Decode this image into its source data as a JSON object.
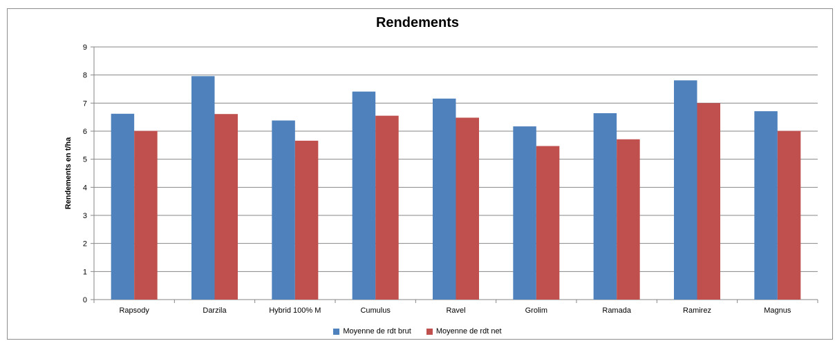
{
  "chart_data": {
    "type": "bar",
    "title": "Rendements",
    "xlabel": "",
    "ylabel": "Rendements en t/ha",
    "ylim": [
      0,
      9
    ],
    "yticks": [
      0,
      1,
      2,
      3,
      4,
      5,
      6,
      7,
      8,
      9
    ],
    "grid": true,
    "legend_position": "bottom",
    "categories": [
      "Rapsody",
      "Darzila",
      "Hybrid 100% M",
      "Cumulus",
      "Ravel",
      "Grolim",
      "Ramada",
      "Ramirez",
      "Magnus"
    ],
    "series": [
      {
        "name": "Moyenne de rdt brut",
        "color": "#4f81bd",
        "values": [
          6.62,
          7.96,
          6.38,
          7.41,
          7.16,
          6.17,
          6.64,
          7.81,
          6.71
        ]
      },
      {
        "name": "Moyenne de rdt net",
        "color": "#c0504d",
        "values": [
          6.01,
          6.61,
          5.66,
          6.55,
          6.48,
          5.47,
          5.71,
          7.0,
          6.01
        ]
      }
    ]
  }
}
